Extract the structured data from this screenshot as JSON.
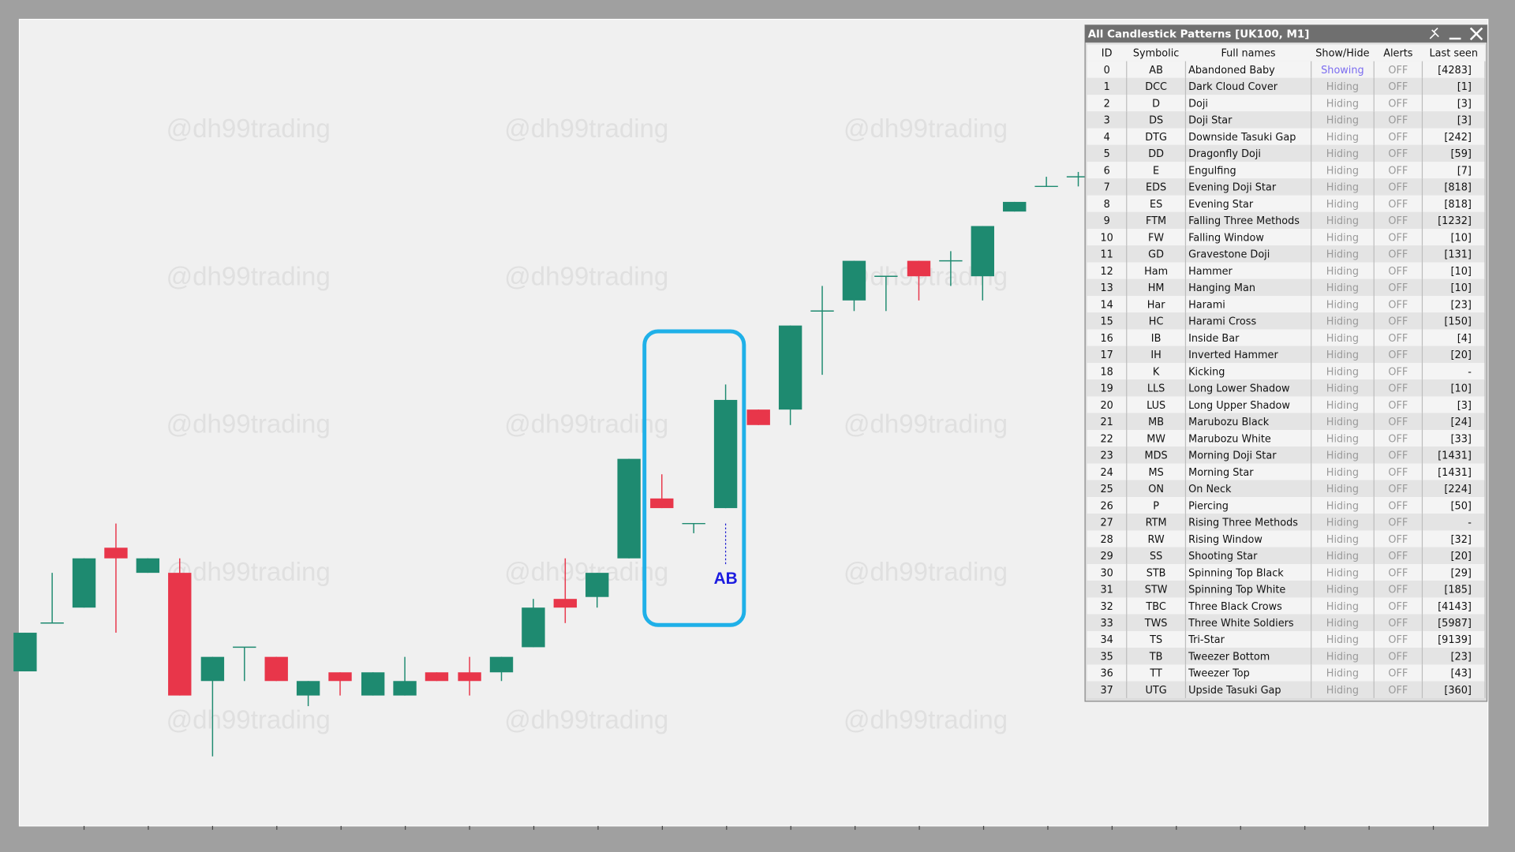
{
  "watermark": "@dh99trading",
  "annotation": "AB",
  "panel": {
    "title": "All Candlestick Patterns [UK100, M1]",
    "columns": [
      "ID",
      "Symbolic",
      "Full  names",
      "Show/Hide",
      "Alerts",
      "Last seen"
    ],
    "rows": [
      [
        0,
        "AB",
        "Abandoned Baby",
        "Showing",
        "OFF",
        "[4283]"
      ],
      [
        1,
        "DCC",
        "Dark Cloud Cover",
        "Hiding",
        "OFF",
        "[1]"
      ],
      [
        2,
        "D",
        "Doji",
        "Hiding",
        "OFF",
        "[3]"
      ],
      [
        3,
        "DS",
        "Doji Star",
        "Hiding",
        "OFF",
        "[3]"
      ],
      [
        4,
        "DTG",
        "Downside Tasuki Gap",
        "Hiding",
        "OFF",
        "[242]"
      ],
      [
        5,
        "DD",
        "Dragonfly Doji",
        "Hiding",
        "OFF",
        "[59]"
      ],
      [
        6,
        "E",
        "Engulfing",
        "Hiding",
        "OFF",
        "[7]"
      ],
      [
        7,
        "EDS",
        "Evening Doji Star",
        "Hiding",
        "OFF",
        "[818]"
      ],
      [
        8,
        "ES",
        "Evening Star",
        "Hiding",
        "OFF",
        "[818]"
      ],
      [
        9,
        "FTM",
        "Falling Three Methods",
        "Hiding",
        "OFF",
        "[1232]"
      ],
      [
        10,
        "FW",
        "Falling Window",
        "Hiding",
        "OFF",
        "[10]"
      ],
      [
        11,
        "GD",
        "Gravestone Doji",
        "Hiding",
        "OFF",
        "[131]"
      ],
      [
        12,
        "Ham",
        "Hammer",
        "Hiding",
        "OFF",
        "[10]"
      ],
      [
        13,
        "HM",
        "Hanging Man",
        "Hiding",
        "OFF",
        "[10]"
      ],
      [
        14,
        "Har",
        "Harami",
        "Hiding",
        "OFF",
        "[23]"
      ],
      [
        15,
        "HC",
        "Harami Cross",
        "Hiding",
        "OFF",
        "[150]"
      ],
      [
        16,
        "IB",
        "Inside Bar",
        "Hiding",
        "OFF",
        "[4]"
      ],
      [
        17,
        "IH",
        "Inverted Hammer",
        "Hiding",
        "OFF",
        "[20]"
      ],
      [
        18,
        "K",
        "Kicking",
        "Hiding",
        "OFF",
        "-"
      ],
      [
        19,
        "LLS",
        "Long Lower Shadow",
        "Hiding",
        "OFF",
        "[10]"
      ],
      [
        20,
        "LUS",
        "Long Upper Shadow",
        "Hiding",
        "OFF",
        "[3]"
      ],
      [
        21,
        "MB",
        "Marubozu Black",
        "Hiding",
        "OFF",
        "[24]"
      ],
      [
        22,
        "MW",
        "Marubozu White",
        "Hiding",
        "OFF",
        "[33]"
      ],
      [
        23,
        "MDS",
        "Morning Doji Star",
        "Hiding",
        "OFF",
        "[1431]"
      ],
      [
        24,
        "MS",
        "Morning Star",
        "Hiding",
        "OFF",
        "[1431]"
      ],
      [
        25,
        "ON",
        "On Neck",
        "Hiding",
        "OFF",
        "[224]"
      ],
      [
        26,
        "P",
        "Piercing",
        "Hiding",
        "OFF",
        "[50]"
      ],
      [
        27,
        "RTM",
        "Rising Three Methods",
        "Hiding",
        "OFF",
        "-"
      ],
      [
        28,
        "RW",
        "Rising Window",
        "Hiding",
        "OFF",
        "[32]"
      ],
      [
        29,
        "SS",
        "Shooting Star",
        "Hiding",
        "OFF",
        "[20]"
      ],
      [
        30,
        "STB",
        "Spinning Top Black",
        "Hiding",
        "OFF",
        "[29]"
      ],
      [
        31,
        "STW",
        "Spinning Top White",
        "Hiding",
        "OFF",
        "[185]"
      ],
      [
        32,
        "TBC",
        "Three Black Crows",
        "Hiding",
        "OFF",
        "[4143]"
      ],
      [
        33,
        "TWS",
        "Three White Soldiers",
        "Hiding",
        "OFF",
        "[5987]"
      ],
      [
        34,
        "TS",
        "Tri-Star",
        "Hiding",
        "OFF",
        "[9139]"
      ],
      [
        35,
        "TB",
        "Tweezer Bottom",
        "Hiding",
        "OFF",
        "[23]"
      ],
      [
        36,
        "TT",
        "Tweezer Top",
        "Hiding",
        "OFF",
        "[43]"
      ],
      [
        37,
        "UTG",
        "Upside Tasuki Gap",
        "Hiding",
        "OFF",
        "[360]"
      ]
    ]
  }
}
